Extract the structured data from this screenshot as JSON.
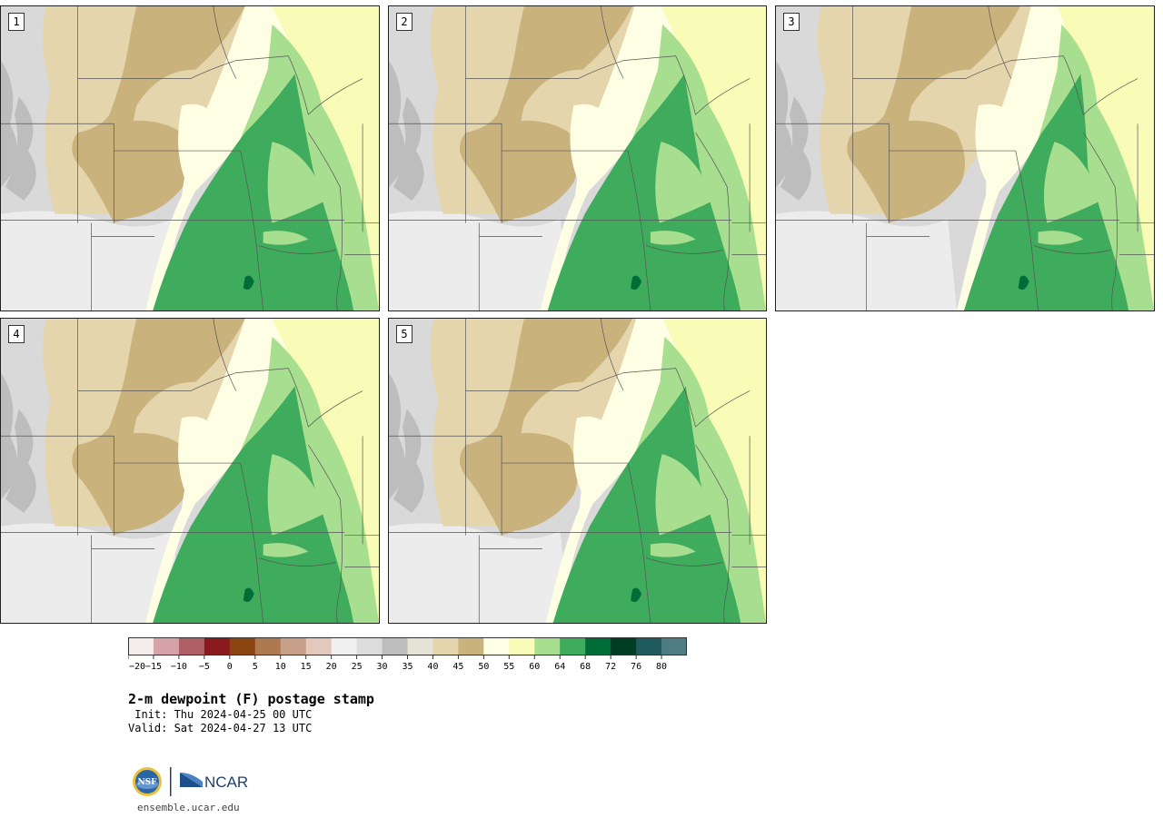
{
  "panels": [
    {
      "number": "1"
    },
    {
      "number": "2"
    },
    {
      "number": "3"
    },
    {
      "number": "4"
    },
    {
      "number": "5"
    }
  ],
  "colorbar": {
    "bins": [
      {
        "color": "#f5ecec"
      },
      {
        "color": "#d8a3a8"
      },
      {
        "color": "#b06065"
      },
      {
        "color": "#8b1a1e"
      },
      {
        "color": "#8b4511"
      },
      {
        "color": "#ad7950"
      },
      {
        "color": "#c89f88"
      },
      {
        "color": "#e2c9bb"
      },
      {
        "color": "#f0f0f0"
      },
      {
        "color": "#dcdcdc"
      },
      {
        "color": "#bdbdbd"
      },
      {
        "color": "#e3e3d6"
      },
      {
        "color": "#e5d5ad"
      },
      {
        "color": "#c9b27c"
      },
      {
        "color": "#fefee4"
      },
      {
        "color": "#f8fcb6"
      },
      {
        "color": "#a8de90"
      },
      {
        "color": "#3fab5c"
      },
      {
        "color": "#006d39"
      },
      {
        "color": "#003d22"
      },
      {
        "color": "#1e5a5e"
      },
      {
        "color": "#4f7c82"
      }
    ],
    "tick_labels": [
      "−20",
      "−15",
      "−10",
      "−5",
      "0",
      "5",
      "10",
      "15",
      "20",
      "25",
      "30",
      "35",
      "40",
      "45",
      "50",
      "55",
      "60",
      "64",
      "68",
      "72",
      "76",
      "80"
    ]
  },
  "title": "2-m dewpoint (F) postage stamp",
  "init_line": " Init: Thu 2024-04-25 00 UTC",
  "valid_line": "Valid: Sat 2024-04-27 13 UTC",
  "logo": {
    "nsf": "NSF",
    "ncar": "NCAR"
  },
  "footer_url": "ensemble.ucar.edu",
  "map_colors": {
    "gray_light": "#ececec",
    "gray_mid": "#d9d9d9",
    "gray_dark": "#bdbdbd",
    "tan_light": "#e5d5ad",
    "tan_dark": "#c9b27c",
    "cream": "#fefee4",
    "yellow": "#f8fcb6",
    "green_light": "#a8de90",
    "green": "#3fab5c",
    "green_dark": "#006d39"
  }
}
